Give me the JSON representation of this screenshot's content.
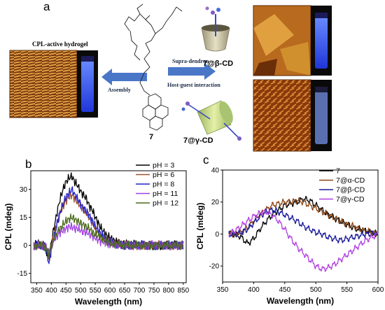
{
  "panels": {
    "a": "a",
    "b": "b",
    "c": "c"
  },
  "scheme": {
    "hydrogel_label": "CPL-active hydrogel",
    "assembly_label": "Assembly",
    "supra_label": "Supra-dendron",
    "hostguest_label": "Host-guest interaction",
    "compound_label": "7",
    "beta_label": "7@β-CD",
    "gamma_label": "7@γ-CD",
    "colors": {
      "arrow": "#4a76c8",
      "vial_glow": "#3d6cff",
      "afm_gold": "#c98a2c",
      "cup": "#c9c3a6",
      "cone": "#cfe38f"
    }
  },
  "chart_data": [
    {
      "type": "line",
      "panel": "b",
      "xlabel": "Wavelength (nm)",
      "ylabel": "CPL (mdeg)",
      "xlim": [
        330,
        860
      ],
      "ylim": [
        -20,
        40
      ],
      "xticks": [
        350,
        400,
        450,
        500,
        550,
        600,
        650,
        700,
        750,
        800,
        850
      ],
      "yticks": [
        -15,
        0,
        15,
        30
      ],
      "legend_position": "top-right",
      "noise": 1.6,
      "x": [
        340,
        360,
        375,
        385,
        392,
        400,
        410,
        420,
        430,
        440,
        450,
        460,
        470,
        480,
        490,
        500,
        510,
        520,
        530,
        540,
        550,
        560,
        570,
        580,
        590,
        600,
        620,
        650,
        700,
        750,
        800,
        850
      ],
      "series": [
        {
          "name": "pH = 3",
          "color": "#000000",
          "values": [
            0,
            1,
            0,
            -4,
            -8,
            2,
            10,
            18,
            25,
            30,
            34,
            36,
            37,
            34,
            32,
            29,
            27,
            25,
            21,
            19,
            15,
            12,
            9,
            7,
            5,
            4,
            2,
            1,
            0,
            0,
            0,
            0
          ]
        },
        {
          "name": "pH = 6",
          "color": "#a0522d",
          "values": [
            0,
            0,
            0,
            -3,
            -6,
            0,
            6,
            12,
            17,
            21,
            24,
            26,
            27,
            25,
            23,
            21,
            19,
            17,
            15,
            12,
            9,
            7,
            5,
            4,
            3,
            2,
            1,
            0,
            0,
            0,
            0,
            0
          ]
        },
        {
          "name": "pH = 8",
          "color": "#2222cc",
          "values": [
            0,
            0,
            0,
            -4,
            -10,
            -2,
            5,
            12,
            18,
            22,
            26,
            28,
            30,
            27,
            25,
            22,
            20,
            18,
            16,
            13,
            10,
            8,
            6,
            4,
            3,
            2,
            1,
            0,
            0,
            0,
            0,
            0
          ]
        },
        {
          "name": "pH = 11",
          "color": "#a040e0",
          "values": [
            0,
            0,
            0,
            -2,
            -4,
            0,
            3,
            5,
            7,
            8,
            9,
            10,
            10,
            9,
            9,
            8,
            7,
            7,
            6,
            5,
            4,
            3,
            2,
            2,
            1,
            1,
            0,
            0,
            0,
            0,
            0,
            0
          ]
        },
        {
          "name": "pH = 12",
          "color": "#4a6a1a",
          "values": [
            0,
            0,
            0,
            -2,
            -5,
            0,
            4,
            7,
            9,
            11,
            13,
            14,
            15,
            14,
            13,
            12,
            11,
            10,
            9,
            7,
            6,
            5,
            4,
            3,
            2,
            1,
            1,
            0,
            0,
            0,
            0,
            0
          ]
        }
      ]
    },
    {
      "type": "line",
      "panel": "c",
      "xlabel": "Wavelength (nm)",
      "ylabel": "CPL (mdeg)",
      "xlim": [
        350,
        600
      ],
      "ylim": [
        -30,
        40
      ],
      "xticks": [
        350,
        400,
        450,
        500,
        550,
        600
      ],
      "yticks": [
        -20,
        0,
        20,
        40
      ],
      "legend_position": "top-right",
      "noise": 1.4,
      "x": [
        360,
        370,
        380,
        390,
        400,
        410,
        420,
        430,
        440,
        450,
        460,
        470,
        480,
        490,
        500,
        510,
        520,
        530,
        540,
        550,
        560,
        570,
        580,
        590,
        600
      ],
      "series": [
        {
          "name": "7",
          "color": "#000000",
          "values": [
            0,
            0,
            -2,
            -6,
            -3,
            3,
            8,
            12,
            15,
            18,
            19,
            20,
            22,
            21,
            18,
            15,
            12,
            10,
            8,
            6,
            4,
            3,
            2,
            1,
            0
          ]
        },
        {
          "name": "7@α-CD",
          "color": "#8b4513",
          "values": [
            0,
            0,
            1,
            4,
            8,
            12,
            15,
            18,
            19,
            20,
            20,
            21,
            20,
            18,
            16,
            14,
            12,
            10,
            8,
            6,
            5,
            3,
            2,
            1,
            0
          ]
        },
        {
          "name": "7@β-CD",
          "color": "#1a1a9a",
          "values": [
            0,
            0,
            1,
            3,
            7,
            11,
            14,
            15,
            14,
            12,
            10,
            8,
            5,
            3,
            1,
            0,
            -2,
            -3,
            -4,
            -3,
            -2,
            -1,
            0,
            0,
            0
          ]
        },
        {
          "name": "7@γ-CD",
          "color": "#b040e0",
          "values": [
            0,
            2,
            5,
            8,
            11,
            13,
            14,
            12,
            8,
            3,
            -3,
            -8,
            -12,
            -16,
            -20,
            -22,
            -21,
            -19,
            -16,
            -13,
            -10,
            -7,
            -4,
            -2,
            0
          ]
        }
      ]
    }
  ]
}
